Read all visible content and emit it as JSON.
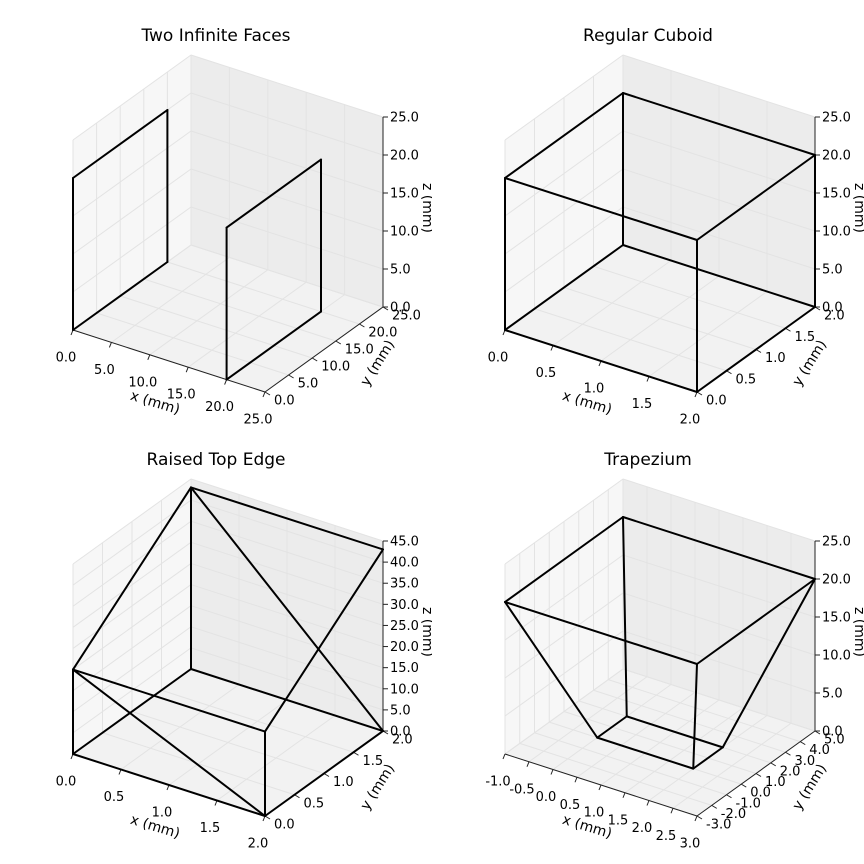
{
  "chart_data": [
    {
      "type": "3d-wireframe",
      "title": "Two Infinite Faces",
      "xlabel": "x (mm)",
      "ylabel": "y (mm)",
      "zlabel": "z (mm)",
      "xlim": [
        0,
        25
      ],
      "ylim": [
        0,
        25
      ],
      "zlim": [
        0,
        25
      ],
      "xticks": [
        "0.0",
        "5.0",
        "10.0",
        "15.0",
        "20.0",
        "25.0"
      ],
      "yticks": [
        "0.0",
        "5.0",
        "10.0",
        "15.0",
        "20.0",
        "25.0"
      ],
      "zticks": [
        "0.0",
        "5.0",
        "10.0",
        "15.0",
        "20.0",
        "25.0"
      ],
      "vertices": [
        [
          0,
          0,
          0
        ],
        [
          0,
          20,
          0
        ],
        [
          0,
          20,
          20
        ],
        [
          0,
          0,
          20
        ],
        [
          20,
          0,
          0
        ],
        [
          20,
          20,
          0
        ],
        [
          20,
          20,
          20
        ],
        [
          20,
          0,
          20
        ]
      ],
      "edges": [
        [
          0,
          1
        ],
        [
          1,
          2
        ],
        [
          2,
          3
        ],
        [
          3,
          0
        ],
        [
          4,
          5
        ],
        [
          5,
          6
        ],
        [
          6,
          7
        ],
        [
          7,
          4
        ]
      ]
    },
    {
      "type": "3d-wireframe",
      "title": "Regular Cuboid",
      "xlabel": "x (mm)",
      "ylabel": "y (mm)",
      "zlabel": "z (mm)",
      "xlim": [
        0,
        2
      ],
      "ylim": [
        0,
        2
      ],
      "zlim": [
        0,
        25
      ],
      "xticks": [
        "0.0",
        "0.5",
        "1.0",
        "1.5",
        "2.0"
      ],
      "yticks": [
        "0.0",
        "0.5",
        "1.0",
        "1.5",
        "2.0"
      ],
      "zticks": [
        "0.0",
        "5.0",
        "10.0",
        "15.0",
        "20.0",
        "25.0"
      ],
      "vertices": [
        [
          0,
          0,
          0
        ],
        [
          2,
          0,
          0
        ],
        [
          2,
          2,
          0
        ],
        [
          0,
          2,
          0
        ],
        [
          0,
          0,
          20
        ],
        [
          2,
          0,
          20
        ],
        [
          2,
          2,
          20
        ],
        [
          0,
          2,
          20
        ]
      ],
      "edges": [
        [
          0,
          1
        ],
        [
          1,
          2
        ],
        [
          2,
          3
        ],
        [
          3,
          0
        ],
        [
          4,
          5
        ],
        [
          5,
          6
        ],
        [
          6,
          7
        ],
        [
          7,
          4
        ],
        [
          0,
          4
        ],
        [
          1,
          5
        ],
        [
          2,
          6
        ],
        [
          3,
          7
        ]
      ]
    },
    {
      "type": "3d-wireframe",
      "title": "Raised Top Edge",
      "xlabel": "x (mm)",
      "ylabel": "y (mm)",
      "zlabel": "z (mm)",
      "xlim": [
        0,
        2
      ],
      "ylim": [
        0,
        2
      ],
      "zlim": [
        0,
        45
      ],
      "xticks": [
        "0.0",
        "0.5",
        "1.0",
        "1.5",
        "2.0"
      ],
      "yticks": [
        "0.0",
        "0.5",
        "1.0",
        "1.5",
        "2.0"
      ],
      "zticks": [
        "0.0",
        "5.0",
        "10.0",
        "15.0",
        "20.0",
        "25.0",
        "30.0",
        "35.0",
        "40.0",
        "45.0"
      ],
      "vertices": [
        [
          0,
          0,
          0
        ],
        [
          2,
          0,
          0
        ],
        [
          2,
          2,
          0
        ],
        [
          0,
          2,
          0
        ],
        [
          0,
          0,
          20
        ],
        [
          2,
          0,
          20
        ],
        [
          2,
          2,
          43
        ],
        [
          0,
          2,
          43
        ]
      ],
      "edges": [
        [
          0,
          1
        ],
        [
          1,
          2
        ],
        [
          2,
          3
        ],
        [
          3,
          0
        ],
        [
          4,
          5
        ],
        [
          5,
          6
        ],
        [
          6,
          7
        ],
        [
          7,
          4
        ],
        [
          0,
          4
        ],
        [
          1,
          5
        ],
        [
          3,
          7
        ],
        [
          4,
          1
        ],
        [
          7,
          2
        ]
      ]
    },
    {
      "type": "3d-wireframe",
      "title": "Trapezium",
      "xlabel": "x (mm)",
      "ylabel": "y (mm)",
      "zlabel": "z (mm)",
      "xlim": [
        -1,
        3
      ],
      "ylim": [
        -3,
        5
      ],
      "zlim": [
        0,
        25
      ],
      "xticks": [
        "-1.0",
        "-0.5",
        "0.0",
        "0.5",
        "1.0",
        "1.5",
        "2.0",
        "2.5",
        "3.0"
      ],
      "yticks": [
        "-3.0",
        "-2.0",
        "-1.0",
        "0.0",
        "1.0",
        "2.0",
        "3.0",
        "4.0",
        "5.0"
      ],
      "zticks": [
        "0.0",
        "5.0",
        "10.0",
        "15.0",
        "20.0",
        "25.0"
      ],
      "vertices": [
        [
          0,
          0,
          0
        ],
        [
          2,
          0,
          0
        ],
        [
          2,
          2,
          0
        ],
        [
          0,
          2,
          0
        ],
        [
          -1,
          -3,
          20
        ],
        [
          3,
          -3,
          20
        ],
        [
          3,
          5,
          20
        ],
        [
          -1,
          5,
          20
        ]
      ],
      "edges": [
        [
          0,
          1
        ],
        [
          1,
          2
        ],
        [
          2,
          3
        ],
        [
          3,
          0
        ],
        [
          4,
          5
        ],
        [
          5,
          6
        ],
        [
          6,
          7
        ],
        [
          7,
          4
        ],
        [
          0,
          4
        ],
        [
          1,
          5
        ],
        [
          2,
          6
        ],
        [
          3,
          7
        ]
      ]
    }
  ]
}
